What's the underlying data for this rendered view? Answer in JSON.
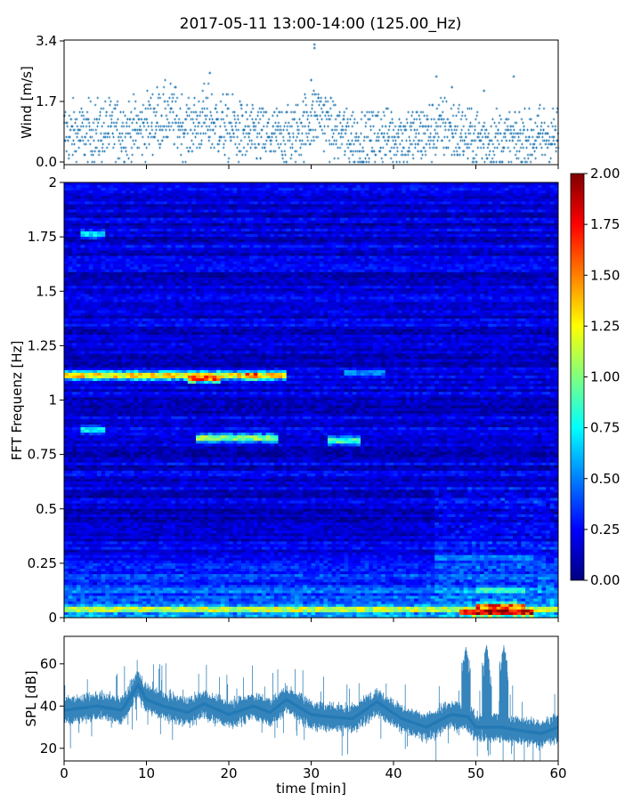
{
  "figure": {
    "title": "2017-05-11 13:00-14:00 (125.00_Hz)"
  },
  "chart_data": [
    {
      "type": "scatter",
      "name": "wind",
      "ylabel": "Wind [m/s]",
      "xlim": [
        0,
        60
      ],
      "ylim": [
        0,
        3.4
      ],
      "yticks": [
        0.0,
        1.7,
        3.4
      ],
      "ytick_labels": [
        "0.0",
        "1.7",
        "3.4"
      ],
      "xticks": [
        0,
        10,
        20,
        30,
        40,
        50,
        60
      ],
      "marker": "+",
      "color": "#1f77b4",
      "levels": [
        0.0,
        0.1,
        0.2,
        0.3,
        0.4,
        0.5,
        0.6,
        0.7,
        0.8,
        0.9,
        1.0,
        1.1,
        1.2,
        1.3,
        1.4,
        1.5,
        1.6,
        1.7,
        1.8,
        1.9,
        2.0,
        2.1,
        2.2,
        2.3,
        2.4,
        2.5,
        3.2,
        3.3
      ],
      "profile": [
        {
          "t": 0,
          "mean": 0.8,
          "max": 2.1
        },
        {
          "t": 3,
          "mean": 0.8,
          "max": 2.0
        },
        {
          "t": 6,
          "mean": 0.9,
          "max": 1.9
        },
        {
          "t": 9,
          "mean": 0.9,
          "max": 1.9
        },
        {
          "t": 11,
          "mean": 1.2,
          "max": 2.3
        },
        {
          "t": 13,
          "mean": 1.3,
          "max": 2.3
        },
        {
          "t": 15,
          "mean": 0.9,
          "max": 1.8
        },
        {
          "t": 17,
          "mean": 1.2,
          "max": 2.5
        },
        {
          "t": 19,
          "mean": 1.0,
          "max": 2.1
        },
        {
          "t": 22,
          "mean": 0.8,
          "max": 1.6
        },
        {
          "t": 25,
          "mean": 0.7,
          "max": 1.5
        },
        {
          "t": 28,
          "mean": 0.8,
          "max": 1.6
        },
        {
          "t": 30,
          "mean": 1.2,
          "max": 2.4
        },
        {
          "t": 31,
          "mean": 1.4,
          "max": 2.2
        },
        {
          "t": 33,
          "mean": 0.9,
          "max": 1.6
        },
        {
          "t": 36,
          "mean": 0.6,
          "max": 1.4
        },
        {
          "t": 39,
          "mean": 0.8,
          "max": 1.5
        },
        {
          "t": 42,
          "mean": 0.7,
          "max": 1.4
        },
        {
          "t": 44,
          "mean": 0.8,
          "max": 1.5
        },
        {
          "t": 46,
          "mean": 1.0,
          "max": 2.0
        },
        {
          "t": 49,
          "mean": 0.7,
          "max": 1.5
        },
        {
          "t": 52,
          "mean": 0.6,
          "max": 1.5
        },
        {
          "t": 55,
          "mean": 0.6,
          "max": 1.4
        },
        {
          "t": 57,
          "mean": 0.7,
          "max": 1.6
        },
        {
          "t": 60,
          "mean": 0.7,
          "max": 1.5
        }
      ],
      "outliers": [
        {
          "x": 30.4,
          "y": 3.3
        },
        {
          "x": 30.4,
          "y": 3.2
        },
        {
          "x": 17.7,
          "y": 2.5
        },
        {
          "x": 45.2,
          "y": 2.4
        },
        {
          "x": 54.6,
          "y": 2.4
        },
        {
          "x": 30.0,
          "y": 2.3
        },
        {
          "x": 47.1,
          "y": 2.1
        },
        {
          "x": 51.0,
          "y": 2.0
        }
      ]
    },
    {
      "type": "heatmap",
      "name": "spectrogram",
      "ylabel": "FFT Frequenz [Hz]",
      "xlim": [
        0,
        60
      ],
      "ylim": [
        0,
        2
      ],
      "yticks": [
        0,
        0.25,
        0.5,
        0.75,
        1,
        1.25,
        1.5,
        1.75,
        2
      ],
      "ytick_labels": [
        "0",
        "0.25",
        "0.5",
        "0.75",
        "1",
        "1.25",
        "1.5",
        "1.75",
        "2"
      ],
      "xticks": [
        0,
        10,
        20,
        30,
        40,
        50,
        60
      ],
      "colormap": "jet",
      "colorbar": {
        "range": [
          0.0,
          2.0
        ],
        "ticks": [
          0.0,
          0.25,
          0.5,
          0.75,
          1.0,
          1.25,
          1.5,
          1.75,
          2.0
        ],
        "tick_labels": [
          "0.00",
          "0.25",
          "0.50",
          "0.75",
          "1.00",
          "1.25",
          "1.50",
          "1.75",
          "2.00"
        ]
      },
      "background_level": 0.18,
      "features": [
        {
          "freq": 1.11,
          "t_start": 0,
          "t_end": 27,
          "value": 1.35
        },
        {
          "freq": 1.1,
          "t_start": 15,
          "t_end": 19,
          "value": 1.7
        },
        {
          "freq": 1.11,
          "t_start": 22,
          "t_end": 24,
          "value": 1.65
        },
        {
          "freq": 0.82,
          "t_start": 16,
          "t_end": 26,
          "value": 1.05
        },
        {
          "freq": 0.81,
          "t_start": 32,
          "t_end": 36,
          "value": 0.9
        },
        {
          "freq": 0.86,
          "t_start": 2,
          "t_end": 5,
          "value": 0.8
        },
        {
          "freq": 1.12,
          "t_start": 34,
          "t_end": 39,
          "value": 0.55
        },
        {
          "freq": 1.76,
          "t_start": 2,
          "t_end": 5,
          "value": 0.75
        },
        {
          "freq": 0.04,
          "t_start": 0,
          "t_end": 60,
          "value": 1.2
        },
        {
          "freq": 0.02,
          "t_start": 48,
          "t_end": 57,
          "value": 2.0
        },
        {
          "freq": 0.05,
          "t_start": 50,
          "t_end": 56,
          "value": 1.7
        },
        {
          "freq": 0.12,
          "t_start": 50,
          "t_end": 56,
          "value": 0.85
        },
        {
          "freq": 0.27,
          "t_start": 45,
          "t_end": 57,
          "value": 0.55
        }
      ]
    },
    {
      "type": "line",
      "name": "spl",
      "ylabel": "SPL [dB]",
      "xlabel": "time [min]",
      "xlim": [
        0,
        60
      ],
      "ylim": [
        14,
        73
      ],
      "yticks": [
        20,
        40,
        60
      ],
      "ytick_labels": [
        "20",
        "40",
        "60"
      ],
      "xticks": [
        0,
        10,
        20,
        30,
        40,
        50,
        60
      ],
      "xtick_labels": [
        "0",
        "10",
        "20",
        "30",
        "40",
        "50",
        "60"
      ],
      "color": "#1f77b4",
      "envelope": [
        {
          "t": 0,
          "mid": 38
        },
        {
          "t": 4,
          "mid": 40
        },
        {
          "t": 7,
          "mid": 38
        },
        {
          "t": 9,
          "mid": 50
        },
        {
          "t": 10,
          "mid": 43
        },
        {
          "t": 12,
          "mid": 40
        },
        {
          "t": 15,
          "mid": 37
        },
        {
          "t": 17,
          "mid": 41
        },
        {
          "t": 20,
          "mid": 36
        },
        {
          "t": 23,
          "mid": 40
        },
        {
          "t": 25,
          "mid": 37
        },
        {
          "t": 27,
          "mid": 43
        },
        {
          "t": 30,
          "mid": 36
        },
        {
          "t": 32,
          "mid": 35
        },
        {
          "t": 35,
          "mid": 34
        },
        {
          "t": 38,
          "mid": 42
        },
        {
          "t": 41,
          "mid": 34
        },
        {
          "t": 44,
          "mid": 30
        },
        {
          "t": 47,
          "mid": 36
        },
        {
          "t": 49,
          "mid": 35
        },
        {
          "t": 50,
          "mid": 30
        },
        {
          "t": 53,
          "mid": 30
        },
        {
          "t": 56,
          "mid": 28
        },
        {
          "t": 58,
          "mid": 27
        },
        {
          "t": 60,
          "mid": 30
        }
      ],
      "spikes": [
        {
          "t": 48.8,
          "peak": 68
        },
        {
          "t": 51.3,
          "peak": 69
        },
        {
          "t": 53.4,
          "peak": 69
        },
        {
          "t": 9.0,
          "peak": 56
        }
      ]
    }
  ]
}
